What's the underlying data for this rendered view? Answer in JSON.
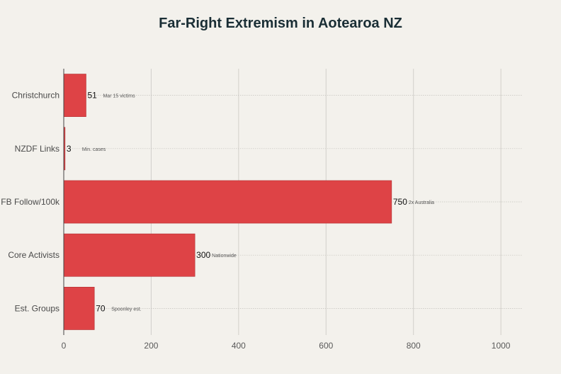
{
  "chart_data": {
    "type": "bar",
    "orientation": "horizontal",
    "title": "Far-Right Extremism in Aotearoa NZ",
    "categories": [
      "Christchurch",
      "NZDF Links",
      "FB Follow/100k",
      "Core Activists",
      "Est. Groups"
    ],
    "values": [
      51,
      3,
      750,
      300,
      70
    ],
    "annotations": [
      "Mar 15 victims",
      "Min. cases",
      "2x Australia",
      "Nationwide",
      "Spoonley est."
    ],
    "xlabel": "",
    "ylabel": "",
    "xlim": [
      0,
      1050
    ],
    "xticks": [
      0,
      200,
      400,
      600,
      800,
      1000
    ],
    "grid": true,
    "bar_color": "#de4346",
    "bar_edge_color": "#b02e31"
  }
}
